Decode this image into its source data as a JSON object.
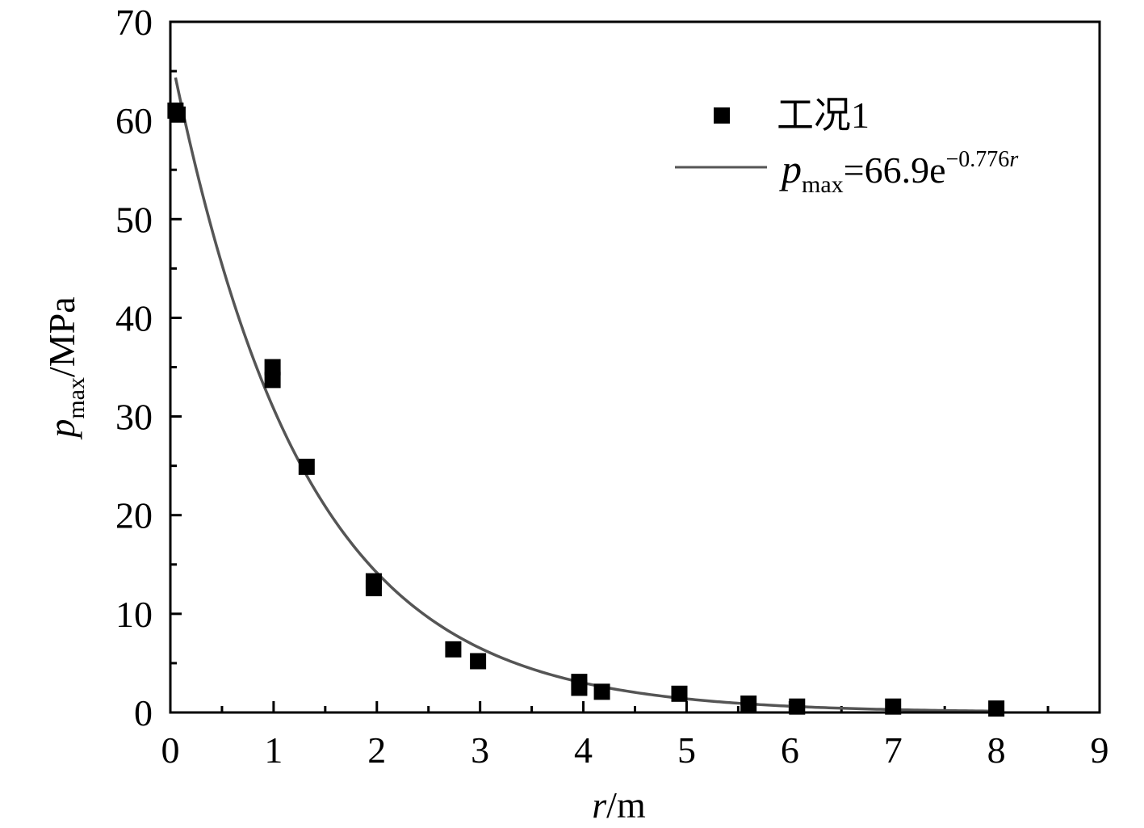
{
  "chart_data": {
    "type": "scatter",
    "xlabel": {
      "var": "r",
      "unit": "/m"
    },
    "ylabel": {
      "var": "p",
      "sub": "max",
      "unit": "/MPa"
    },
    "xlim": [
      0,
      9
    ],
    "ylim": [
      0,
      70
    ],
    "x_ticks": [
      0,
      1,
      2,
      3,
      4,
      5,
      6,
      7,
      8,
      9
    ],
    "y_ticks": [
      0,
      10,
      20,
      30,
      40,
      50,
      60,
      70
    ],
    "grid": false,
    "legend_position": "top-right",
    "series": [
      {
        "name": "工况1",
        "kind": "scatter",
        "marker": "square",
        "color": "#000000",
        "points": [
          [
            0.05,
            61.0
          ],
          [
            0.07,
            60.6
          ],
          [
            0.99,
            35.0
          ],
          [
            0.99,
            33.7
          ],
          [
            1.32,
            24.9
          ],
          [
            1.97,
            13.3
          ],
          [
            1.97,
            12.6
          ],
          [
            2.74,
            6.4
          ],
          [
            2.98,
            5.2
          ],
          [
            3.96,
            3.1
          ],
          [
            3.96,
            2.5
          ],
          [
            4.18,
            2.1
          ],
          [
            4.93,
            1.9
          ],
          [
            5.6,
            0.9
          ],
          [
            6.07,
            0.6
          ],
          [
            7.0,
            0.6
          ],
          [
            8.0,
            0.4
          ]
        ]
      },
      {
        "name": "p_max=66.9e^{−0.776r}",
        "kind": "fit-curve",
        "color": "#555555",
        "function": {
          "a": 66.9,
          "b": -0.776,
          "x_start": 0.05,
          "x_end": 8.0
        }
      }
    ],
    "legend": {
      "scatter_label": "工况1",
      "fit_label": {
        "var": "p",
        "sub": "max",
        "eq": "=66.9e",
        "exp": "−0.776",
        "exp_var": "r"
      }
    }
  }
}
